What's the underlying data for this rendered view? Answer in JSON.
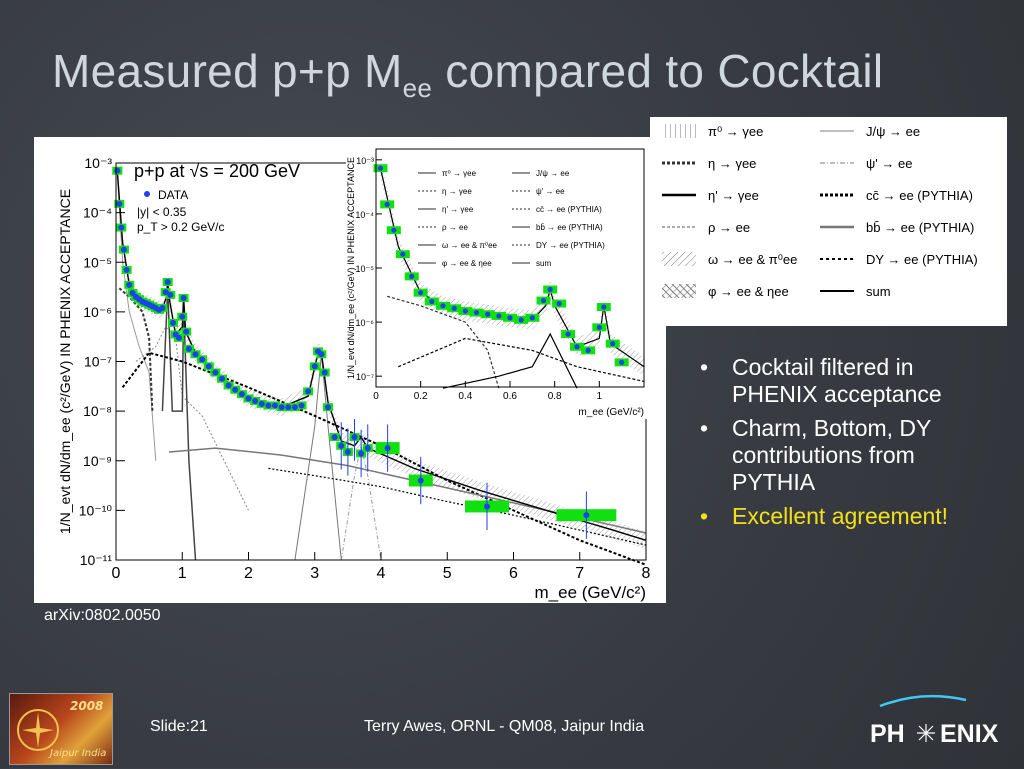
{
  "slide": {
    "title_main": "Measured p+p M",
    "title_sub": "ee",
    "title_rest": " compared to Cocktail",
    "bullets": [
      "Cocktail filtered in PHENIX acceptance",
      "Charm, Bottom, DY contributions from PYTHIA",
      "Excellent agreement!"
    ],
    "reference": "arXiv:0802.0050",
    "footer_slide": "Slide:21",
    "footer_author": "Terry Awes, ORNL - QM08, Jaipur India",
    "logo_right_text_a": "PH",
    "logo_right_text_b": "ENIX",
    "logo_left_year": "2008",
    "logo_left_city": "Jaipur India",
    "colors": {
      "background": "#3b3f45",
      "title": "#cfd6de",
      "highlight": "#f2e01a",
      "sys_box": "#10e010",
      "data": "#1f3ff0",
      "phenix_arc": "#40c8f0"
    }
  },
  "chart_data": [
    {
      "type": "line",
      "annotation_lines": [
        "p+p at √s = 200 GeV",
        "|y| < 0.35",
        "p_T > 0.2 GeV/c"
      ],
      "legend_entry": "DATA",
      "xlabel": "m_ee (GeV/c²)",
      "ylabel": "1/N_evt dN/dm_ee (c²/GeV) IN PHENIX ACCEPTANCE",
      "xlim": [
        0,
        8
      ],
      "ylim": [
        1e-11,
        0.001
      ],
      "yscale": "log",
      "x_ticks": [
        "0",
        "1",
        "2",
        "3",
        "4",
        "5",
        "6",
        "7",
        "8"
      ],
      "y_ticks": [
        "10⁻¹¹",
        "10⁻¹⁰",
        "10⁻⁹",
        "10⁻⁸",
        "10⁻⁷",
        "10⁻⁶",
        "10⁻⁵",
        "10⁻⁴",
        "10⁻³"
      ],
      "series": [
        {
          "name": "DATA",
          "x": [
            0.02,
            0.05,
            0.08,
            0.12,
            0.16,
            0.2,
            0.25,
            0.3,
            0.35,
            0.4,
            0.45,
            0.5,
            0.55,
            0.6,
            0.65,
            0.7,
            0.75,
            0.78,
            0.82,
            0.86,
            0.9,
            0.95,
            1.0,
            1.02,
            1.06,
            1.1,
            1.2,
            1.3,
            1.4,
            1.5,
            1.6,
            1.7,
            1.8,
            1.9,
            2.0,
            2.1,
            2.2,
            2.3,
            2.4,
            2.5,
            2.6,
            2.7,
            2.8,
            2.9,
            3.0,
            3.05,
            3.1,
            3.15,
            3.2,
            3.3,
            3.4,
            3.5,
            3.6,
            3.7,
            3.8,
            4.1,
            4.6,
            5.6,
            7.1
          ],
          "y": [
            0.0007,
            0.00015,
            5e-05,
            1.8e-05,
            7e-06,
            3.5e-06,
            2.4e-06,
            2e-06,
            1.8e-06,
            1.6e-06,
            1.5e-06,
            1.4e-06,
            1.3e-06,
            1.2e-06,
            1.1e-06,
            1.2e-06,
            2.5e-06,
            4e-06,
            2.2e-06,
            6e-07,
            3.5e-07,
            3e-07,
            8e-07,
            1.9e-06,
            4e-07,
            1.8e-07,
            1.4e-07,
            1.1e-07,
            8e-08,
            6e-08,
            4.5e-08,
            3.3e-08,
            2.7e-08,
            2.2e-08,
            1.8e-08,
            1.6e-08,
            1.4e-08,
            1.3e-08,
            1.3e-08,
            1.2e-08,
            1.2e-08,
            1.2e-08,
            1.3e-08,
            2.5e-08,
            8e-08,
            1.6e-07,
            1.4e-07,
            6e-08,
            1.2e-08,
            3e-09,
            2e-09,
            1.5e-09,
            3e-09,
            1.4e-09,
            1.8e-09,
            1.8e-09,
            4e-10,
            1.2e-10,
            8e-11
          ]
        },
        {
          "name": "sum",
          "x": [
            0.02,
            0.1,
            0.2,
            0.3,
            0.4,
            0.5,
            0.6,
            0.7,
            0.76,
            0.78,
            0.8,
            0.9,
            1.0,
            1.02,
            1.05,
            1.2,
            1.5,
            2.0,
            2.5,
            2.9,
            3.05,
            3.1,
            3.2,
            3.4,
            3.6,
            3.7,
            3.8,
            4.5,
            5.5,
            6.5,
            7.5,
            8.0
          ],
          "y": [
            0.0007,
            2.5e-05,
            3.5e-06,
            2e-06,
            1.6e-06,
            1.4e-06,
            1.2e-06,
            1.1e-06,
            2e-06,
            4e-06,
            2e-06,
            3.5e-07,
            5e-07,
            2e-06,
            4e-07,
            1.5e-07,
            6e-08,
            1.8e-08,
            1.2e-08,
            2e-08,
            1.5e-07,
            1.5e-07,
            1.5e-08,
            2.5e-09,
            2e-09,
            3e-09,
            1.8e-09,
            7e-10,
            2.5e-10,
            1e-10,
            4e-11,
            2.5e-11
          ]
        }
      ]
    },
    {
      "type": "line",
      "xlabel": "m_ee (GeV/c²)",
      "ylabel": "1/N_evt dN/dm_ee (c²/GeV) IN PHENIX ACCEPTANCE",
      "xlim": [
        0,
        1.2
      ],
      "x_ticks": [
        "0",
        "0.2",
        "0.4",
        "0.6",
        "0.8",
        "1"
      ],
      "y_ticks": [
        "10⁻⁷",
        "10⁻⁶",
        "10⁻⁵",
        "10⁻⁴",
        "10⁻³"
      ],
      "legend": [
        {
          "label": "π⁰ → γee",
          "style": "vertical-hatch"
        },
        {
          "label": "η → γee",
          "style": "dotted-thick"
        },
        {
          "label": "η' → γee",
          "style": "solid-thick"
        },
        {
          "label": "ρ → ee",
          "style": "dotted-grey"
        },
        {
          "label": "ω → ee & π⁰ee",
          "style": "diagonal-hatch"
        },
        {
          "label": "φ → ee & ηee",
          "style": "cross-hatch"
        },
        {
          "label": "J/ψ → ee",
          "style": "solid-grey"
        },
        {
          "label": "ψ' → ee",
          "style": "dash-dot-grey"
        },
        {
          "label": "cc̄ → ee (PYTHIA)",
          "style": "dotted-black"
        },
        {
          "label": "bb̄ → ee (PYTHIA)",
          "style": "solid-grey-thick"
        },
        {
          "label": "DY → ee (PYTHIA)",
          "style": "dotted-black-thin"
        },
        {
          "label": "sum",
          "style": "solid-black"
        }
      ]
    }
  ]
}
